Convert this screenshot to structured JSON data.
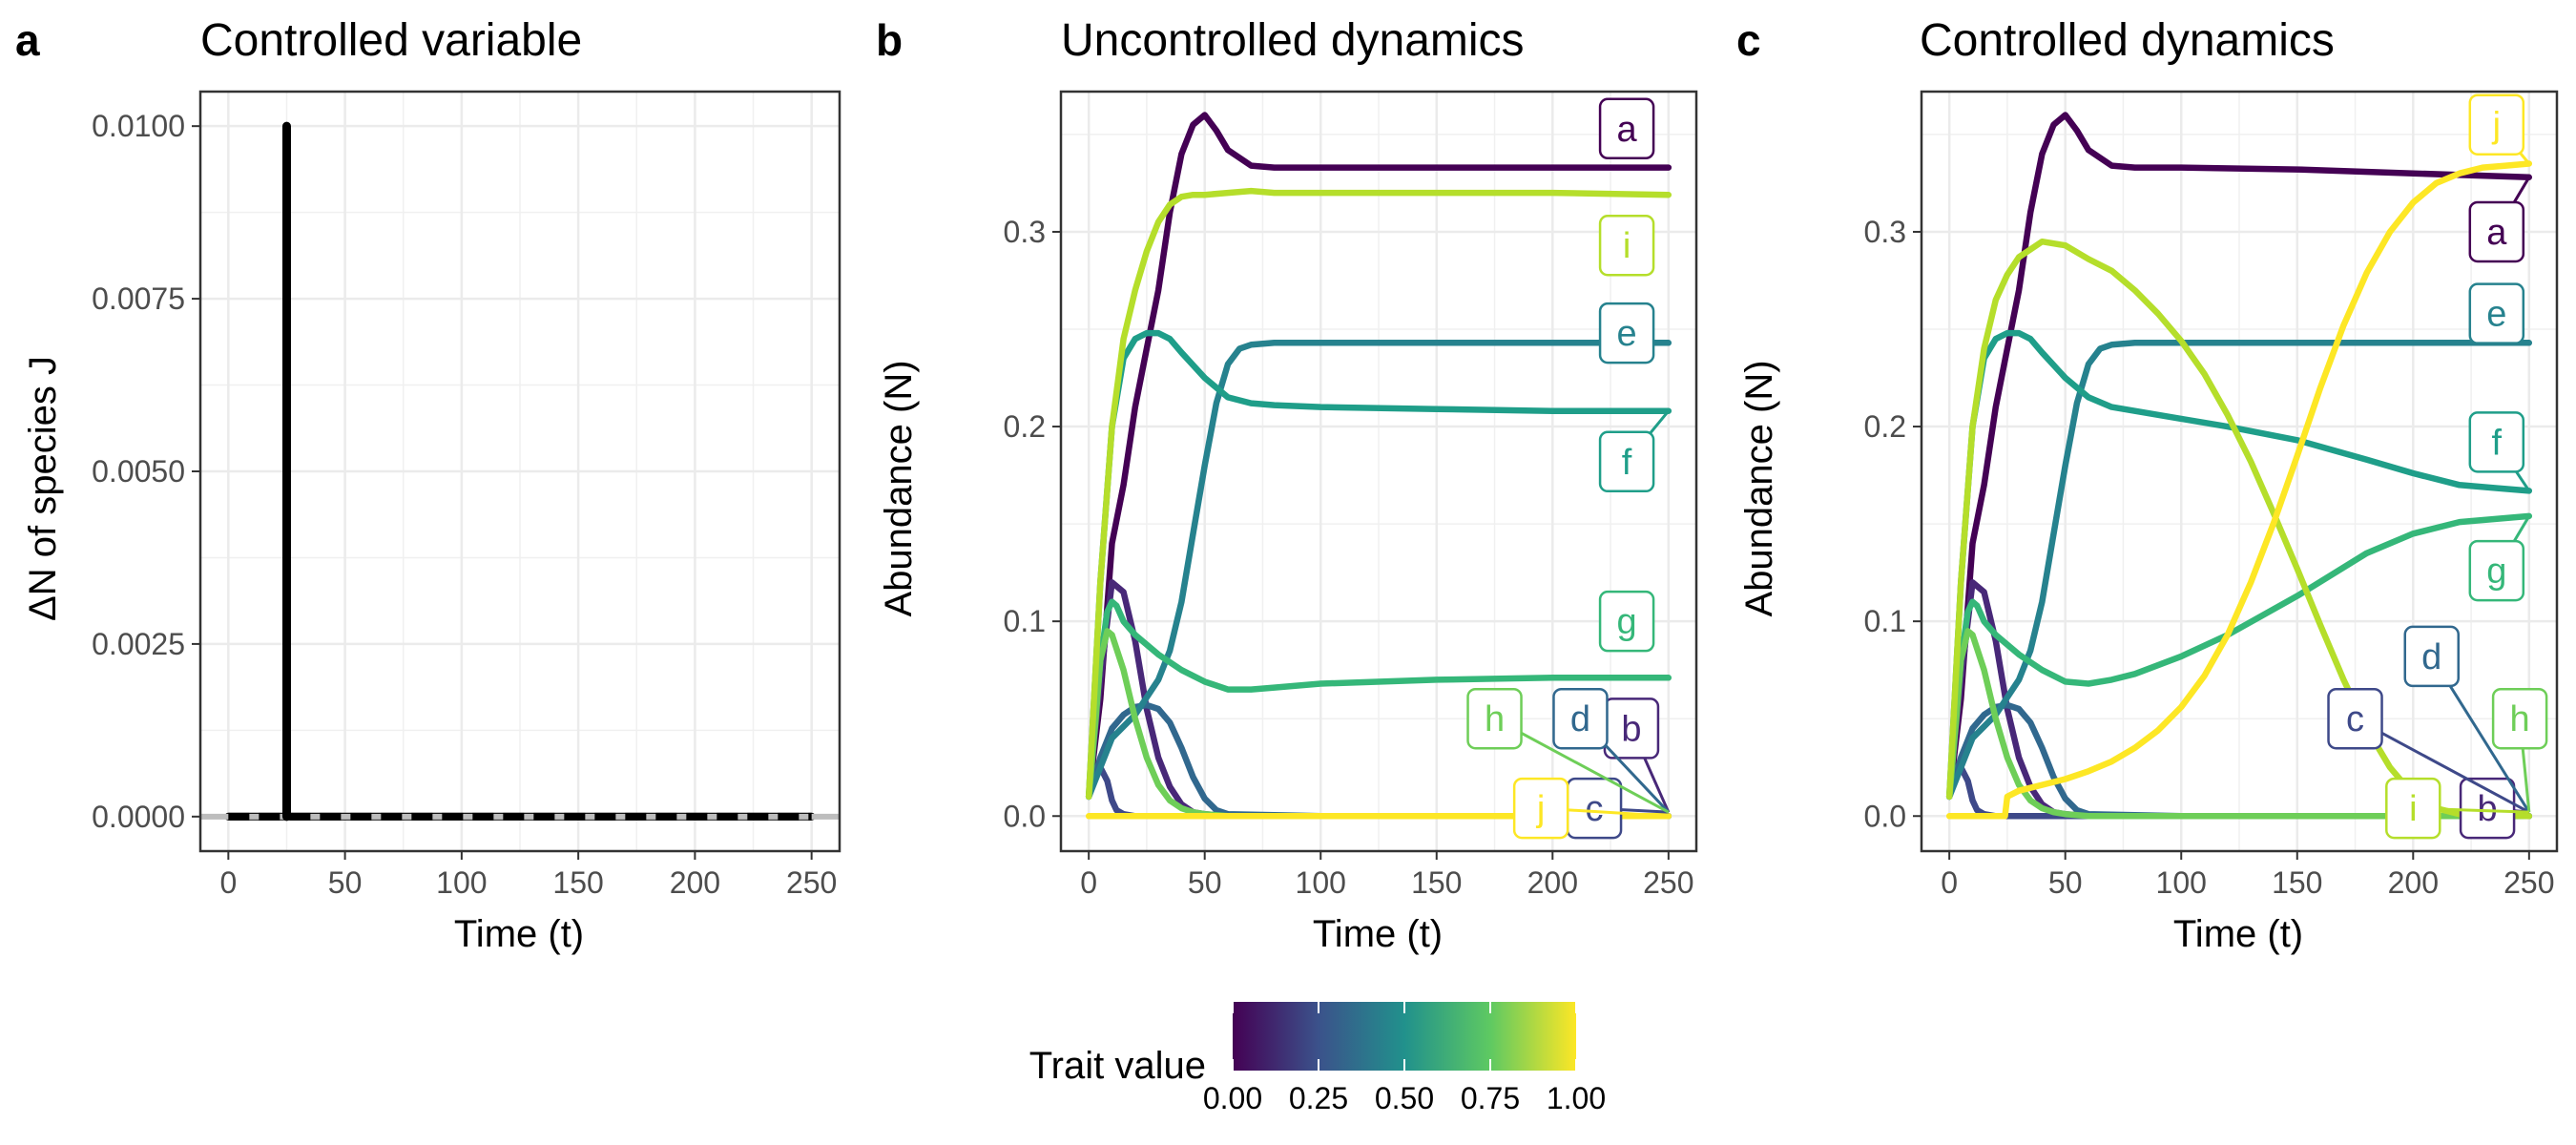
{
  "figure": {
    "panels": [
      {
        "letter": "a",
        "title": "Controlled variable",
        "xlabel": "Time (t)",
        "ylabel": "ΔN of species J"
      },
      {
        "letter": "b",
        "title": "Uncontrolled dynamics",
        "xlabel": "Time (t)",
        "ylabel": "Abundance (N)"
      },
      {
        "letter": "c",
        "title": "Controlled dynamics",
        "xlabel": "Time (t)",
        "ylabel": "Abundance (N)"
      }
    ],
    "colorbar": {
      "title": "Trait value",
      "ticks": [
        "0.00",
        "0.25",
        "0.50",
        "0.75",
        "1.00"
      ],
      "colormap": [
        "#440154",
        "#3b528b",
        "#21918c",
        "#5ec962",
        "#fde725"
      ]
    }
  },
  "chart_data": [
    {
      "type": "line",
      "panel": "a",
      "title": "Controlled variable",
      "xlabel": "Time (t)",
      "ylabel": "ΔN of species J",
      "xlim": [
        -12,
        262
      ],
      "ylim": [
        -0.0005,
        0.0105
      ],
      "xticks": [
        0,
        50,
        100,
        150,
        200,
        250
      ],
      "yticks": [
        0.0,
        0.0025,
        0.005,
        0.0075,
        0.01
      ],
      "yticklabels": [
        "0.0000",
        "0.0025",
        "0.0050",
        "0.0075",
        "0.0100"
      ],
      "grid": true,
      "series": [
        {
          "color": "#000000",
          "x": [
            0,
            25,
            25,
            25,
            250
          ],
          "y": [
            0,
            0,
            0.01,
            0,
            0
          ]
        }
      ]
    },
    {
      "type": "line",
      "panel": "b",
      "title": "Uncontrolled dynamics",
      "xlabel": "Time (t)",
      "ylabel": "Abundance (N)",
      "xlim": [
        -12,
        262
      ],
      "ylim": [
        -0.018,
        0.372
      ],
      "xticks": [
        0,
        50,
        100,
        150,
        200,
        250
      ],
      "yticks": [
        0.0,
        0.1,
        0.2,
        0.3
      ],
      "yticklabels": [
        "0.0",
        "0.1",
        "0.2",
        "0.3"
      ],
      "grid": true,
      "series": [
        {
          "name": "a",
          "color": "#440154",
          "trait": 0.0,
          "x": [
            0,
            5,
            10,
            15,
            20,
            25,
            30,
            35,
            40,
            45,
            50,
            55,
            60,
            70,
            80,
            100,
            150,
            200,
            250
          ],
          "y": [
            0.01,
            0.06,
            0.14,
            0.17,
            0.21,
            0.24,
            0.27,
            0.31,
            0.34,
            0.355,
            0.36,
            0.352,
            0.342,
            0.334,
            0.333,
            0.333,
            0.333,
            0.333,
            0.333
          ],
          "label": {
            "x": 232,
            "y": 0.353
          }
        },
        {
          "name": "b",
          "color": "#482878",
          "trait": 0.11,
          "x": [
            0,
            5,
            10,
            15,
            20,
            25,
            30,
            35,
            40,
            45,
            50,
            60,
            100,
            250
          ],
          "y": [
            0.01,
            0.07,
            0.12,
            0.115,
            0.09,
            0.055,
            0.03,
            0.015,
            0.006,
            0.002,
            0.001,
            0.0,
            0.0,
            0.0
          ],
          "label": {
            "x": 234,
            "y": 0.045,
            "ax": 250,
            "ay": 0.002
          }
        },
        {
          "name": "c",
          "color": "#3e4989",
          "trait": 0.22,
          "x": [
            0,
            3,
            5,
            8,
            10,
            12,
            15,
            20,
            30,
            250
          ],
          "y": [
            0.01,
            0.022,
            0.025,
            0.018,
            0.008,
            0.003,
            0.001,
            0.0,
            0.0,
            0.0
          ],
          "label": {
            "x": 218,
            "y": 0.004,
            "ax": 250,
            "ay": 0.002
          }
        },
        {
          "name": "d",
          "color": "#31688e",
          "trait": 0.33,
          "x": [
            0,
            5,
            10,
            15,
            20,
            25,
            30,
            35,
            40,
            45,
            50,
            55,
            60,
            100,
            250
          ],
          "y": [
            0.01,
            0.03,
            0.045,
            0.052,
            0.056,
            0.057,
            0.055,
            0.048,
            0.035,
            0.02,
            0.009,
            0.003,
            0.001,
            0.0,
            0.0
          ],
          "label": {
            "x": 212,
            "y": 0.05,
            "ax": 250,
            "ay": 0.002
          }
        },
        {
          "name": "e",
          "color": "#26828e",
          "trait": 0.44,
          "x": [
            0,
            10,
            20,
            30,
            35,
            40,
            45,
            50,
            55,
            60,
            65,
            70,
            80,
            90,
            100,
            150,
            200,
            250
          ],
          "y": [
            0.01,
            0.04,
            0.052,
            0.07,
            0.085,
            0.11,
            0.145,
            0.18,
            0.212,
            0.232,
            0.24,
            0.242,
            0.243,
            0.243,
            0.243,
            0.243,
            0.243,
            0.243
          ],
          "label": {
            "x": 232,
            "y": 0.248
          }
        },
        {
          "name": "f",
          "color": "#1f9e89",
          "trait": 0.56,
          "x": [
            0,
            5,
            10,
            15,
            20,
            25,
            30,
            35,
            40,
            50,
            60,
            70,
            80,
            100,
            150,
            200,
            250
          ],
          "y": [
            0.01,
            0.12,
            0.2,
            0.235,
            0.245,
            0.248,
            0.248,
            0.245,
            0.238,
            0.225,
            0.215,
            0.212,
            0.211,
            0.21,
            0.209,
            0.208,
            0.208
          ],
          "label": {
            "x": 232,
            "y": 0.182,
            "ax": 250,
            "ay": 0.208
          }
        },
        {
          "name": "g",
          "color": "#35b779",
          "trait": 0.67,
          "x": [
            0,
            5,
            8,
            10,
            12,
            15,
            20,
            30,
            40,
            50,
            60,
            70,
            80,
            100,
            150,
            200,
            250
          ],
          "y": [
            0.01,
            0.08,
            0.105,
            0.11,
            0.108,
            0.1,
            0.093,
            0.083,
            0.075,
            0.069,
            0.065,
            0.065,
            0.066,
            0.068,
            0.07,
            0.071,
            0.071
          ],
          "label": {
            "x": 232,
            "y": 0.1
          }
        },
        {
          "name": "h",
          "color": "#6ece58",
          "trait": 0.78,
          "x": [
            0,
            3,
            5,
            8,
            10,
            15,
            20,
            25,
            30,
            35,
            40,
            45,
            50,
            60,
            100,
            250
          ],
          "y": [
            0.01,
            0.05,
            0.08,
            0.095,
            0.093,
            0.075,
            0.05,
            0.03,
            0.016,
            0.008,
            0.004,
            0.002,
            0.001,
            0.0,
            0.0,
            0.0
          ],
          "label": {
            "x": 175,
            "y": 0.05,
            "ax": 250,
            "ay": 0.002
          }
        },
        {
          "name": "i",
          "color": "#b5de2b",
          "trait": 0.89,
          "x": [
            0,
            5,
            10,
            15,
            20,
            25,
            30,
            35,
            40,
            45,
            50,
            60,
            70,
            80,
            100,
            150,
            200,
            250
          ],
          "y": [
            0.01,
            0.12,
            0.2,
            0.245,
            0.27,
            0.29,
            0.305,
            0.314,
            0.318,
            0.319,
            0.319,
            0.32,
            0.321,
            0.32,
            0.32,
            0.32,
            0.32,
            0.319
          ],
          "label": {
            "x": 232,
            "y": 0.293
          }
        },
        {
          "name": "j",
          "color": "#fde725",
          "trait": 1.0,
          "x": [
            0,
            50,
            100,
            150,
            200,
            250
          ],
          "y": [
            0.0,
            0.0,
            0.0,
            0.0,
            0.0,
            0.0
          ],
          "label": {
            "x": 195,
            "y": 0.004,
            "ax": 250,
            "ay": 0.0
          }
        }
      ]
    },
    {
      "type": "line",
      "panel": "c",
      "title": "Controlled dynamics",
      "xlabel": "Time (t)",
      "ylabel": "Abundance (N)",
      "xlim": [
        -12,
        262
      ],
      "ylim": [
        -0.018,
        0.372
      ],
      "xticks": [
        0,
        50,
        100,
        150,
        200,
        250
      ],
      "yticks": [
        0.0,
        0.1,
        0.2,
        0.3
      ],
      "yticklabels": [
        "0.0",
        "0.1",
        "0.2",
        "0.3"
      ],
      "grid": true,
      "series": [
        {
          "name": "a",
          "color": "#440154",
          "trait": 0.0,
          "x": [
            0,
            5,
            10,
            15,
            20,
            25,
            30,
            35,
            40,
            45,
            50,
            55,
            60,
            70,
            80,
            100,
            150,
            200,
            250
          ],
          "y": [
            0.01,
            0.06,
            0.14,
            0.17,
            0.21,
            0.24,
            0.27,
            0.31,
            0.34,
            0.355,
            0.36,
            0.352,
            0.342,
            0.334,
            0.333,
            0.333,
            0.332,
            0.33,
            0.328
          ],
          "label": {
            "x": 236,
            "y": 0.3,
            "ax": 250,
            "ay": 0.328
          }
        },
        {
          "name": "b",
          "color": "#482878",
          "trait": 0.11,
          "x": [
            0,
            5,
            10,
            15,
            20,
            25,
            30,
            35,
            40,
            45,
            50,
            60,
            100,
            250
          ],
          "y": [
            0.01,
            0.07,
            0.12,
            0.115,
            0.09,
            0.055,
            0.03,
            0.015,
            0.006,
            0.002,
            0.001,
            0.0,
            0.0,
            0.0
          ],
          "label": {
            "x": 232,
            "y": 0.004,
            "ax": 250,
            "ay": 0.002
          }
        },
        {
          "name": "c",
          "color": "#3e4989",
          "trait": 0.22,
          "x": [
            0,
            3,
            5,
            8,
            10,
            12,
            15,
            20,
            30,
            250
          ],
          "y": [
            0.01,
            0.022,
            0.025,
            0.018,
            0.008,
            0.003,
            0.001,
            0.0,
            0.0,
            0.0
          ],
          "label": {
            "x": 175,
            "y": 0.05,
            "ax": 250,
            "ay": 0.002
          }
        },
        {
          "name": "d",
          "color": "#31688e",
          "trait": 0.33,
          "x": [
            0,
            5,
            10,
            15,
            20,
            25,
            30,
            35,
            40,
            45,
            50,
            55,
            60,
            100,
            250
          ],
          "y": [
            0.01,
            0.03,
            0.045,
            0.052,
            0.056,
            0.057,
            0.055,
            0.048,
            0.035,
            0.02,
            0.009,
            0.003,
            0.001,
            0.0,
            0.0
          ],
          "label": {
            "x": 208,
            "y": 0.082,
            "ax": 250,
            "ay": 0.002
          }
        },
        {
          "name": "e",
          "color": "#26828e",
          "trait": 0.44,
          "x": [
            0,
            10,
            20,
            30,
            35,
            40,
            45,
            50,
            55,
            60,
            65,
            70,
            80,
            90,
            100,
            150,
            200,
            250
          ],
          "y": [
            0.01,
            0.04,
            0.052,
            0.07,
            0.085,
            0.11,
            0.145,
            0.18,
            0.212,
            0.232,
            0.24,
            0.242,
            0.243,
            0.243,
            0.243,
            0.243,
            0.243,
            0.243
          ],
          "label": {
            "x": 236,
            "y": 0.258
          }
        },
        {
          "name": "f",
          "color": "#1f9e89",
          "trait": 0.56,
          "x": [
            0,
            5,
            10,
            15,
            20,
            25,
            30,
            35,
            40,
            50,
            60,
            70,
            80,
            100,
            120,
            150,
            180,
            200,
            220,
            240,
            250
          ],
          "y": [
            0.01,
            0.12,
            0.2,
            0.235,
            0.245,
            0.248,
            0.248,
            0.245,
            0.238,
            0.225,
            0.215,
            0.21,
            0.208,
            0.204,
            0.2,
            0.193,
            0.183,
            0.176,
            0.17,
            0.168,
            0.167
          ],
          "label": {
            "x": 236,
            "y": 0.192,
            "ax": 250,
            "ay": 0.167
          }
        },
        {
          "name": "g",
          "color": "#35b779",
          "trait": 0.67,
          "x": [
            0,
            5,
            8,
            10,
            12,
            15,
            20,
            30,
            40,
            50,
            60,
            70,
            80,
            100,
            120,
            150,
            180,
            200,
            220,
            250
          ],
          "y": [
            0.01,
            0.08,
            0.105,
            0.11,
            0.108,
            0.1,
            0.093,
            0.083,
            0.075,
            0.069,
            0.068,
            0.07,
            0.073,
            0.082,
            0.093,
            0.113,
            0.135,
            0.145,
            0.151,
            0.154
          ],
          "label": {
            "x": 236,
            "y": 0.126,
            "ax": 250,
            "ay": 0.154
          }
        },
        {
          "name": "h",
          "color": "#6ece58",
          "trait": 0.78,
          "x": [
            0,
            3,
            5,
            8,
            10,
            15,
            20,
            25,
            30,
            35,
            40,
            45,
            50,
            60,
            100,
            250
          ],
          "y": [
            0.01,
            0.05,
            0.08,
            0.095,
            0.093,
            0.075,
            0.05,
            0.03,
            0.016,
            0.008,
            0.004,
            0.002,
            0.001,
            0.0,
            0.0,
            0.0
          ],
          "label": {
            "x": 246,
            "y": 0.05,
            "ax": 250,
            "ay": 0.002
          }
        },
        {
          "name": "i",
          "color": "#b5de2b",
          "trait": 0.89,
          "x": [
            0,
            5,
            10,
            15,
            20,
            25,
            30,
            40,
            50,
            60,
            70,
            80,
            90,
            100,
            110,
            120,
            130,
            140,
            150,
            160,
            170,
            180,
            190,
            200,
            210,
            220,
            250
          ],
          "y": [
            0.01,
            0.12,
            0.2,
            0.24,
            0.265,
            0.278,
            0.287,
            0.295,
            0.293,
            0.286,
            0.28,
            0.27,
            0.258,
            0.244,
            0.227,
            0.206,
            0.182,
            0.155,
            0.127,
            0.098,
            0.07,
            0.045,
            0.025,
            0.011,
            0.004,
            0.001,
            0.0
          ],
          "label": {
            "x": 200,
            "y": 0.004,
            "ax": 250,
            "ay": 0.002
          }
        },
        {
          "name": "j",
          "color": "#fde725",
          "trait": 1.0,
          "x": [
            0,
            24,
            25,
            30,
            40,
            50,
            60,
            70,
            80,
            90,
            100,
            110,
            120,
            130,
            140,
            150,
            160,
            170,
            180,
            190,
            200,
            210,
            220,
            230,
            240,
            250
          ],
          "y": [
            0.0,
            0.0,
            0.01,
            0.013,
            0.016,
            0.019,
            0.023,
            0.028,
            0.035,
            0.044,
            0.056,
            0.072,
            0.093,
            0.12,
            0.151,
            0.185,
            0.22,
            0.252,
            0.279,
            0.3,
            0.315,
            0.325,
            0.33,
            0.333,
            0.334,
            0.335
          ],
          "label": {
            "x": 236,
            "y": 0.355,
            "ax": 250,
            "ay": 0.335
          }
        }
      ]
    }
  ]
}
